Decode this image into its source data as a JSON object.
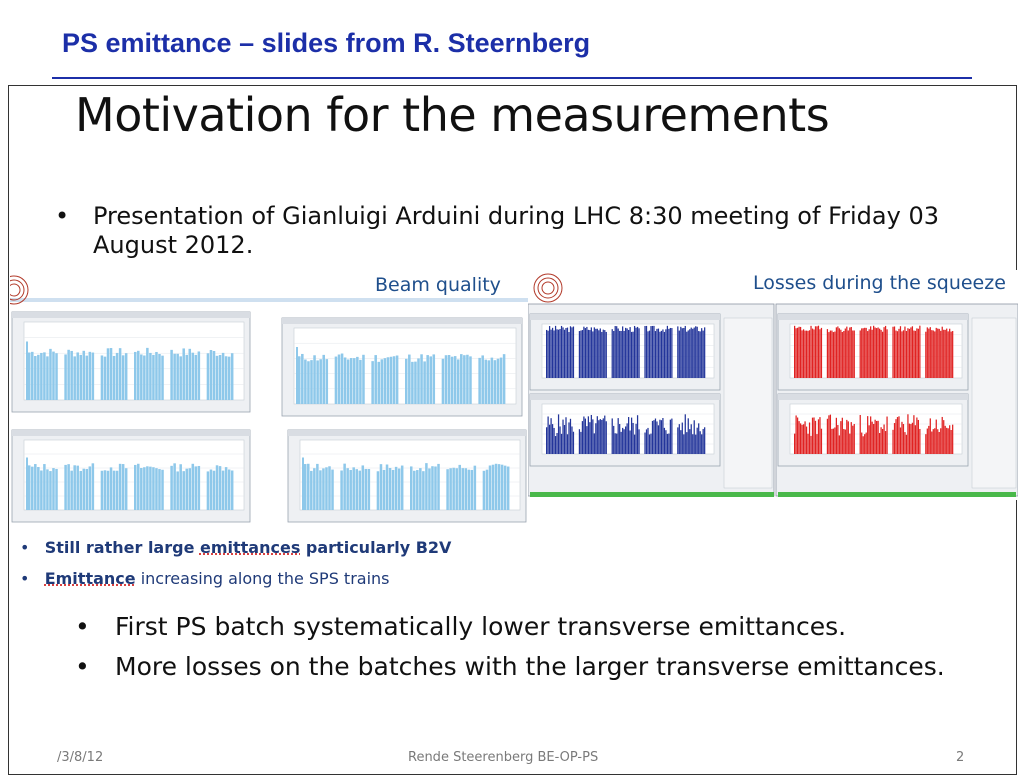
{
  "header": {
    "title": "PS emittance – slides from R. Steernberg"
  },
  "slide": {
    "title": "Motivation for the measurements",
    "bullet1": "Presentation of Gianluigi Arduini during LHC 8:30 meeting of Friday 03 August 2012.",
    "left_panel_caption": "Beam quality",
    "right_panel_caption": "Losses during the squeeze",
    "sub_bullets": [
      {
        "pre": "Still rather large ",
        "u": "emittances",
        "post": " particularly B2V"
      },
      {
        "pre": "",
        "u": "Emittance",
        "post": " increasing along the SPS trains"
      }
    ],
    "bullets2": [
      "First PS batch systematically lower transverse emittances.",
      "More losses on the batches with the larger transverse emittances."
    ]
  },
  "footer": {
    "date": "/3/8/12",
    "author": "Rende Steerenberg BE-OP-PS",
    "page": "2"
  },
  "colors": {
    "header_blue": "#1c2fa8",
    "bar_light_blue": "#8ec8ea",
    "bar_dark_blue": "#23359a",
    "bar_red": "#e02222"
  }
}
